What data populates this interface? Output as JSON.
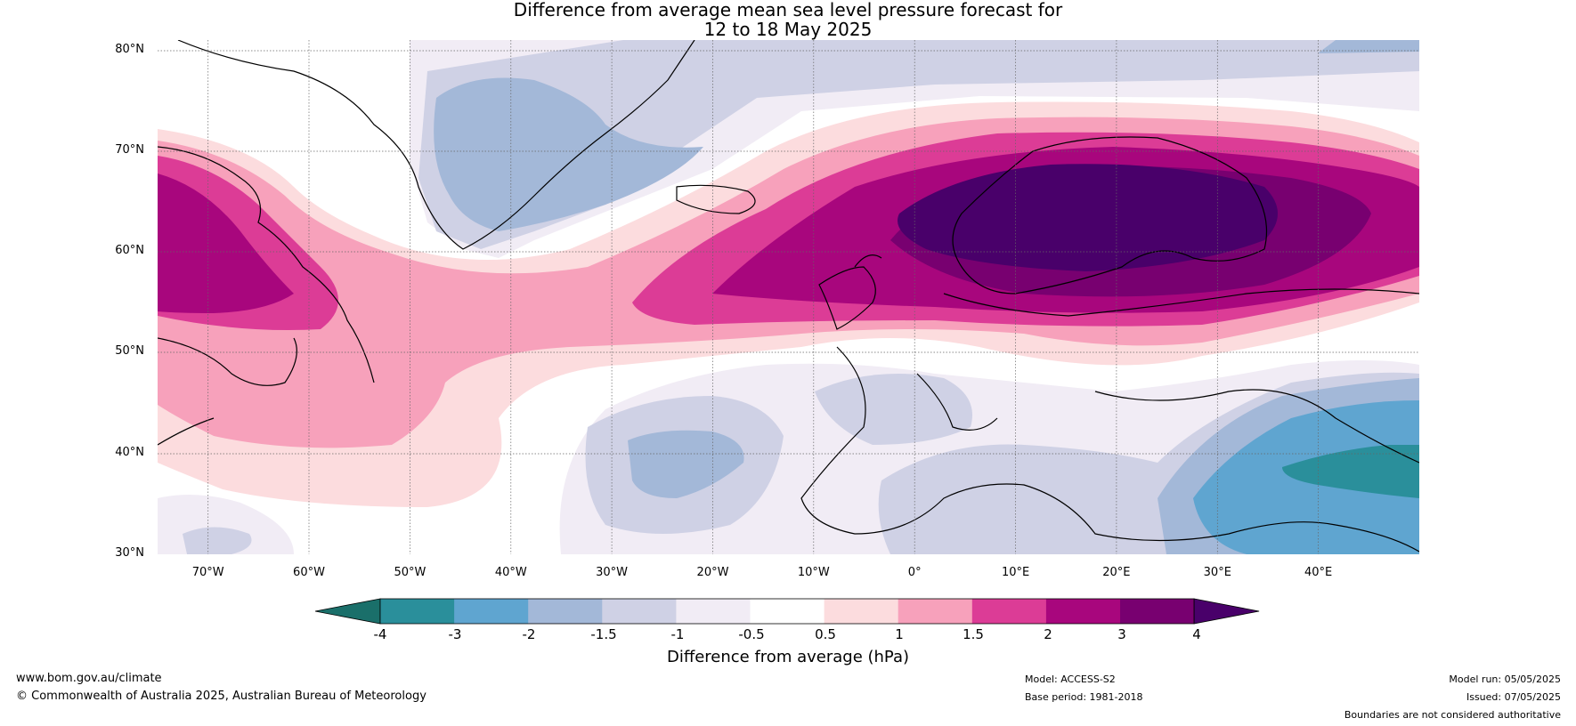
{
  "title_line1": "Difference from average mean sea level pressure forecast for",
  "title_line2": "12 to 18 May 2025",
  "lat_labels": [
    "80°N",
    "70°N",
    "60°N",
    "50°N",
    "40°N",
    "30°N"
  ],
  "lon_labels": [
    "70°W",
    "60°W",
    "50°W",
    "40°W",
    "30°W",
    "20°W",
    "10°W",
    "0°",
    "10°E",
    "20°E",
    "30°E",
    "40°E"
  ],
  "map_extent": {
    "lon_min": -75,
    "lon_max": 50,
    "lat_min": 30,
    "lat_max": 81
  },
  "colorbar": {
    "title": "Difference from average (hPa)",
    "ticks": [
      "-4",
      "-3",
      "-2",
      "-1.5",
      "-1",
      "-0.5",
      "0.5",
      "1",
      "1.5",
      "2",
      "3",
      "4"
    ],
    "colors": [
      "#1a6f6a",
      "#2a8f9b",
      "#5fa5d0",
      "#a3b8d8",
      "#cfd1e5",
      "#f1ecf5",
      "#ffffff",
      "#fcdcde",
      "#f7a1bb",
      "#dc3c96",
      "#a8067d",
      "#780070",
      "#49006a"
    ]
  },
  "footer": {
    "website": "www.bom.gov.au/climate",
    "copyright": "© Commonwealth of Australia 2025, Australian Bureau of Meteorology",
    "model": "Model: ACCESS-S2",
    "base_period": "Base period: 1981-2018",
    "model_run": "Model run: 05/05/2025",
    "issued": "Issued: 07/05/2025",
    "boundaries": "Boundaries are not considered authoritative"
  }
}
